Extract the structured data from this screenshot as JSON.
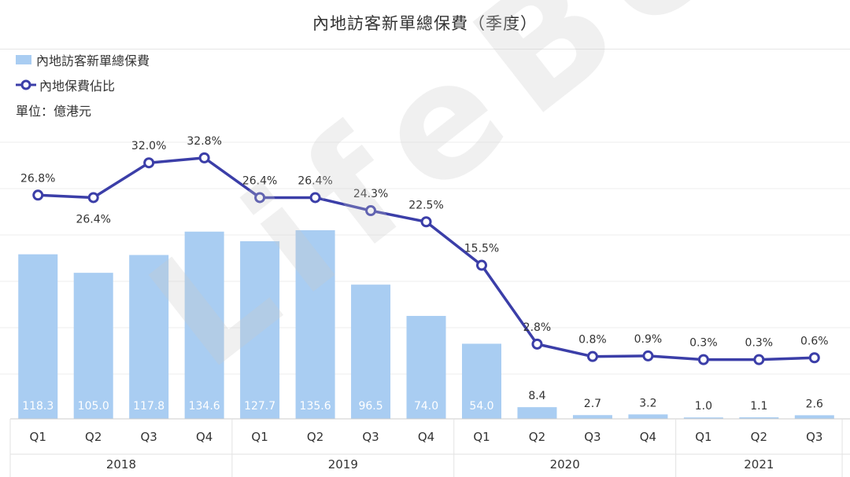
{
  "title": "內地訪客新單總保費（季度）",
  "legend": {
    "bar_label": "內地訪客新單總保費",
    "line_label": "內地保費佔比"
  },
  "unit": "單位：億港元",
  "watermark": "LifeBee",
  "colors": {
    "bar": "#a9cdf2",
    "line": "#3b3ea8",
    "bar_label": "#ffffff",
    "text": "#333333"
  },
  "chart_data": {
    "type": "bar",
    "title": "內地訪客新單總保費（季度）",
    "categories": [
      "Q1",
      "Q2",
      "Q3",
      "Q4",
      "Q1",
      "Q2",
      "Q3",
      "Q4",
      "Q1",
      "Q2",
      "Q3",
      "Q4",
      "Q1",
      "Q2",
      "Q3"
    ],
    "years": [
      {
        "label": "2018",
        "start": 0,
        "end": 3
      },
      {
        "label": "2019",
        "start": 4,
        "end": 7
      },
      {
        "label": "2020",
        "start": 8,
        "end": 11
      },
      {
        "label": "2021",
        "start": 12,
        "end": 14
      }
    ],
    "series": [
      {
        "name": "內地訪客新單總保費",
        "type": "bar",
        "values": [
          118.3,
          105.0,
          117.8,
          134.6,
          127.7,
          135.6,
          96.5,
          74.0,
          54.0,
          8.4,
          2.7,
          3.2,
          1.0,
          1.1,
          2.6
        ],
        "labels": [
          "118.3",
          "105.0",
          "117.8",
          "134.6",
          "127.7",
          "135.6",
          "96.5",
          "74.0",
          "54.0",
          "8.4",
          "2.7",
          "3.2",
          "1.0",
          "1.1",
          "2.6"
        ]
      },
      {
        "name": "內地保費佔比",
        "type": "line",
        "values": [
          26.8,
          26.4,
          32.0,
          32.8,
          26.4,
          26.4,
          24.3,
          22.5,
          15.5,
          2.8,
          0.8,
          0.9,
          0.3,
          0.3,
          0.6
        ],
        "labels": [
          "26.8%",
          "26.4%",
          "32.0%",
          "32.8%",
          "26.4%",
          "26.4%",
          "24.3%",
          "22.5%",
          "15.5%",
          "2.8%",
          "0.8%",
          "0.9%",
          "0.3%",
          "0.3%",
          "0.6%"
        ]
      }
    ],
    "grid": true,
    "legend_position": "top-left"
  }
}
